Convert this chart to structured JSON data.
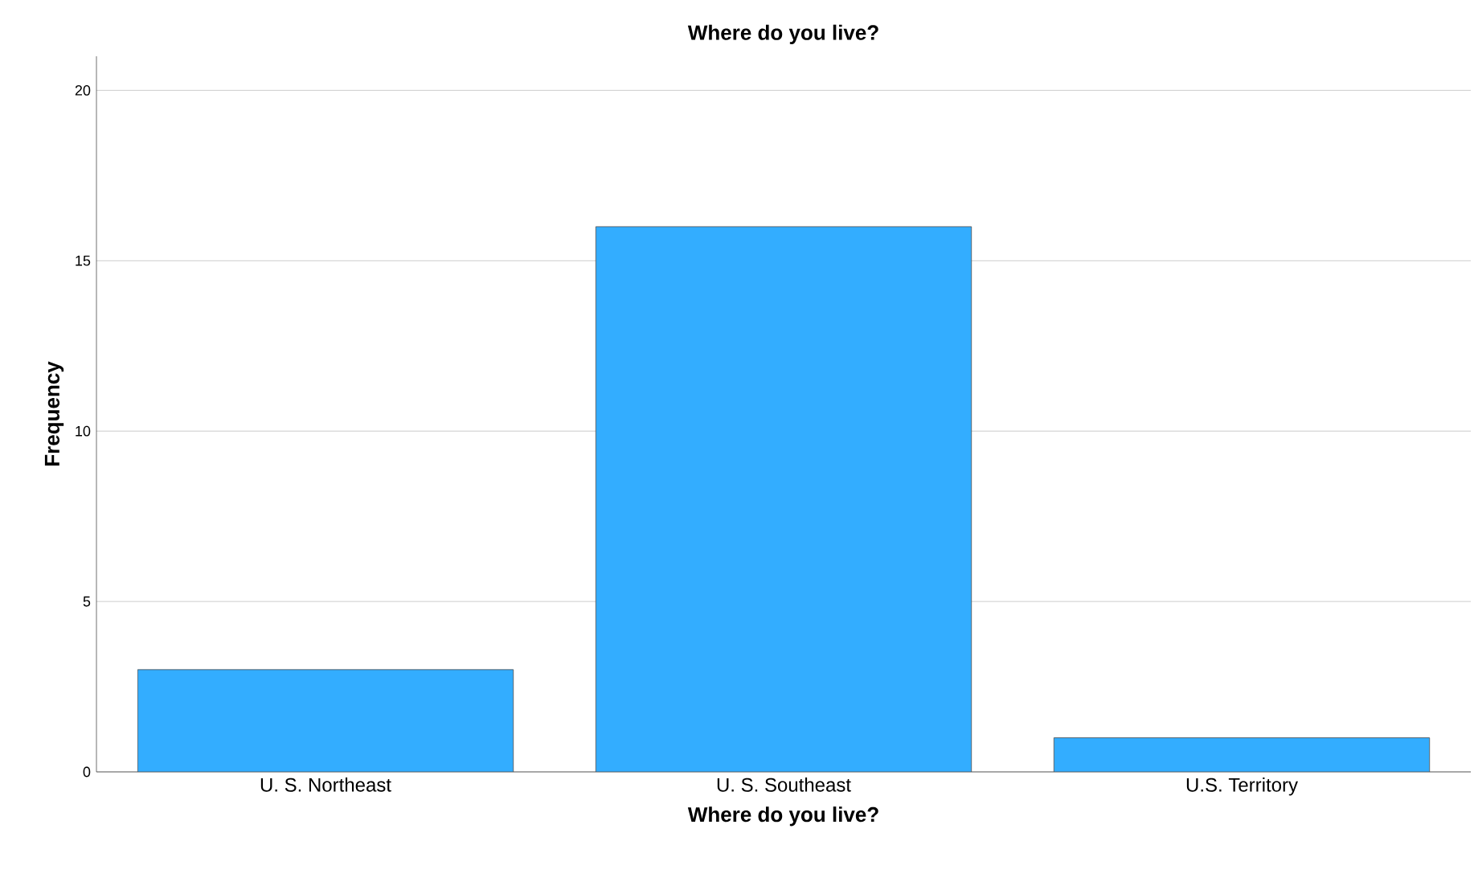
{
  "chart_data": {
    "type": "bar",
    "title": "Where do you live?",
    "xlabel": "Where do you live?",
    "ylabel": "Frequency",
    "categories": [
      "U. S. Northeast",
      "U. S. Southeast",
      "U.S. Territory"
    ],
    "values": [
      3,
      16,
      1
    ],
    "color": "#33adff",
    "ylim": [
      0,
      21
    ],
    "yticks": [
      0,
      5,
      10,
      15,
      20
    ],
    "grid": "y"
  }
}
